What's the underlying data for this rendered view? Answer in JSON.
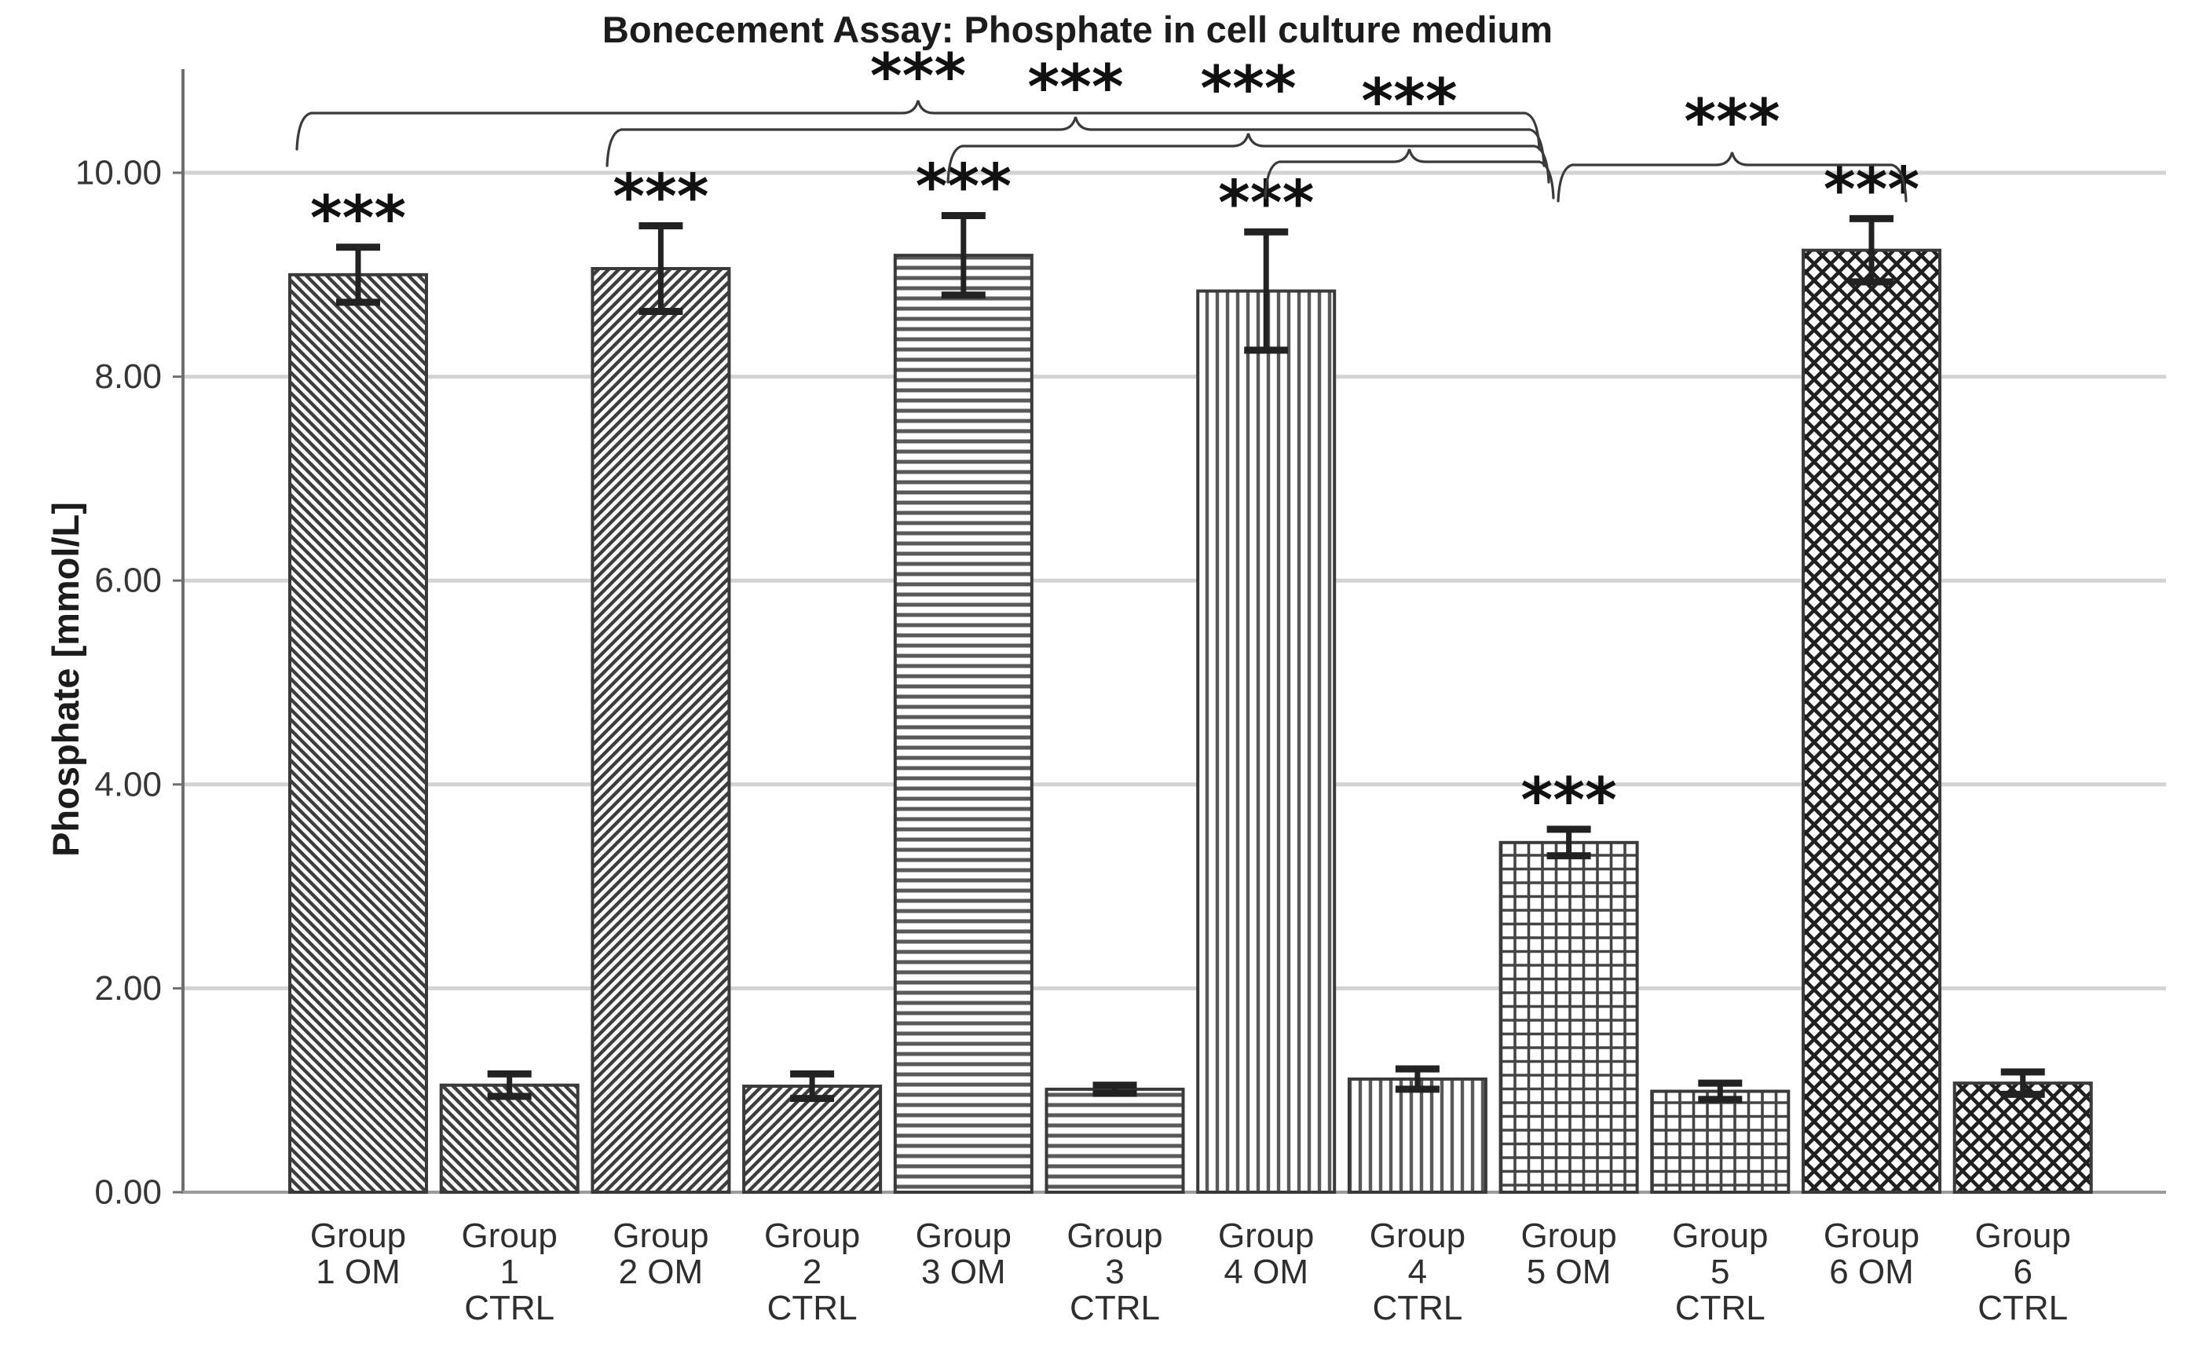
{
  "title": "Bonecement Assay: Phosphate in cell culture medium",
  "chart_data": {
    "type": "bar",
    "title": "Bonecement Assay: Phosphate in cell culture medium",
    "xlabel": "",
    "ylabel": "Phosphate [mmol/L]",
    "ylim": [
      0,
      11
    ],
    "grid": "horizontal",
    "legend": "none",
    "ytick_values": [
      0,
      2,
      4,
      6,
      8,
      10
    ],
    "ytick_labels": [
      "0.00",
      "2.00",
      "4.00",
      "6.00",
      "8.00",
      "10.00"
    ],
    "bars": [
      {
        "category": "Group 1 OM",
        "label_lines": [
          "Group",
          "1 OM"
        ],
        "value": 9.0,
        "error": 0.27,
        "pattern": "diagonal-back",
        "sig": "***"
      },
      {
        "category": "Group 1 CTRL",
        "label_lines": [
          "Group",
          "1",
          "CTRL"
        ],
        "value": 1.05,
        "error": 0.11,
        "pattern": "diagonal-back",
        "sig": ""
      },
      {
        "category": "Group 2 OM",
        "label_lines": [
          "Group",
          "2 OM"
        ],
        "value": 9.06,
        "error": 0.42,
        "pattern": "diagonal-fwd",
        "sig": "***"
      },
      {
        "category": "Group 2 CTRL",
        "label_lines": [
          "Group",
          "2",
          "CTRL"
        ],
        "value": 1.04,
        "error": 0.12,
        "pattern": "diagonal-fwd",
        "sig": ""
      },
      {
        "category": "Group 3 OM",
        "label_lines": [
          "Group",
          "3 OM"
        ],
        "value": 9.19,
        "error": 0.39,
        "pattern": "horizontal",
        "sig": "***"
      },
      {
        "category": "Group 3 CTRL",
        "label_lines": [
          "Group",
          "3",
          "CTRL"
        ],
        "value": 1.01,
        "error": 0.04,
        "pattern": "horizontal",
        "sig": ""
      },
      {
        "category": "Group 4 OM",
        "label_lines": [
          "Group",
          "4 OM"
        ],
        "value": 8.84,
        "error": 0.58,
        "pattern": "vertical",
        "sig": "***"
      },
      {
        "category": "Group 4 CTRL",
        "label_lines": [
          "Group",
          "4",
          "CTRL"
        ],
        "value": 1.11,
        "error": 0.1,
        "pattern": "vertical",
        "sig": ""
      },
      {
        "category": "Group 5 OM",
        "label_lines": [
          "Group",
          "5 OM"
        ],
        "value": 3.43,
        "error": 0.13,
        "pattern": "grid",
        "sig": "***"
      },
      {
        "category": "Group 5 CTRL",
        "label_lines": [
          "Group",
          "5",
          "CTRL"
        ],
        "value": 0.99,
        "error": 0.08,
        "pattern": "grid",
        "sig": ""
      },
      {
        "category": "Group 6 OM",
        "label_lines": [
          "Group",
          "6 OM"
        ],
        "value": 9.24,
        "error": 0.31,
        "pattern": "diagonal-cross",
        "sig": "***"
      },
      {
        "category": "Group 6 CTRL",
        "label_lines": [
          "Group",
          "6",
          "CTRL"
        ],
        "value": 1.07,
        "error": 0.11,
        "pattern": "diagonal-cross",
        "sig": ""
      }
    ],
    "comparisons": [
      {
        "from": "Group 1 OM",
        "to": "Group 5 OM",
        "label": "***"
      },
      {
        "from": "Group 2 OM",
        "to": "Group 5 OM",
        "label": "***"
      },
      {
        "from": "Group 3 OM",
        "to": "Group 5 OM",
        "label": "***"
      },
      {
        "from": "Group 4 OM",
        "to": "Group 5 OM",
        "label": "***"
      },
      {
        "from": "Group 5 OM",
        "to": "Group 6 OM",
        "label": "***"
      }
    ],
    "colors": {
      "bar_fill": "#ffffff",
      "bar_outline": "#3a3a3a",
      "hatch": "#3d3d3d",
      "hatch_gray": "#595959",
      "gridline": "#d3d3d3",
      "axis": "#6f6f6f",
      "baseline": "#9b9b9b",
      "error_bar": "#222222",
      "bracket": "#3a3a3a",
      "text": "#2e2e2e"
    }
  }
}
